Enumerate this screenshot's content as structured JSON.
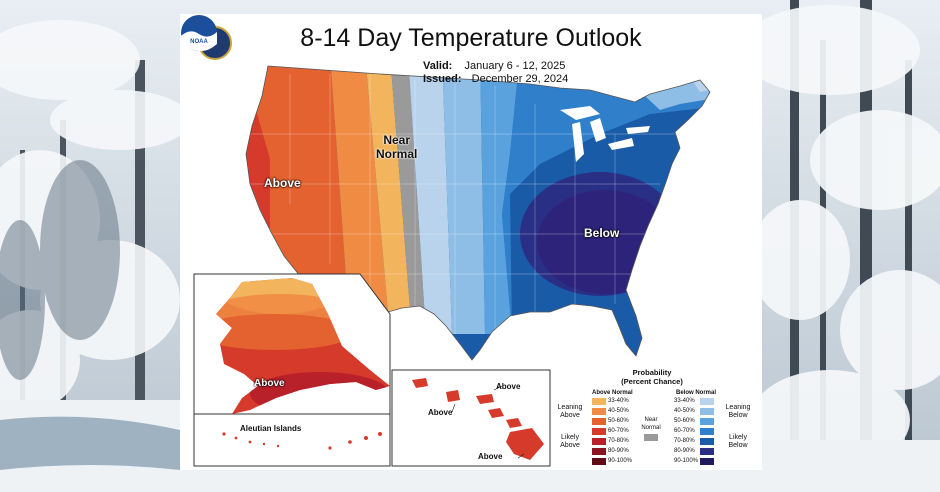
{
  "header": {
    "title": "8-14 Day Temperature Outlook",
    "valid_label": "Valid:",
    "valid_value": "January 6 - 12, 2025",
    "issued_label": "Issued:",
    "issued_value": "December 29, 2024"
  },
  "logos": {
    "seal_icon": "department-of-commerce-seal",
    "noaa_logo_text": "NOAA"
  },
  "map_labels": {
    "above": "Above",
    "near_normal_line1": "Near",
    "near_normal_line2": "Normal",
    "below": "Below",
    "alaska_above": "Above",
    "aleutian": "Aleutian Islands",
    "hawaii_above_1": "Above",
    "hawaii_above_2": "Above",
    "hawaii_above_3": "Above"
  },
  "legend": {
    "title_line1": "Probability",
    "title_line2": "(Percent Chance)",
    "above_header": "Above Normal",
    "below_header": "Below Normal",
    "near_header_line1": "Near",
    "near_header_line2": "Normal",
    "leaning_above_line1": "Leaning",
    "leaning_above_line2": "Above",
    "likely_above_line1": "Likely",
    "likely_above_line2": "Above",
    "leaning_below_line1": "Leaning",
    "leaning_below_line2": "Below",
    "likely_below_line1": "Likely",
    "likely_below_line2": "Below",
    "ranges": [
      "33-40%",
      "40-50%",
      "50-60%",
      "60-70%",
      "70-80%",
      "80-90%",
      "90-100%"
    ],
    "above_colors": [
      "#f2b45c",
      "#ef8b43",
      "#e4622f",
      "#d63a2a",
      "#b8202a",
      "#8c1422",
      "#5e0c18"
    ],
    "below_colors": [
      "#b9d3ec",
      "#8ebde6",
      "#5aa2de",
      "#2f7fcb",
      "#1a5ba8",
      "#2a2f86",
      "#201a5e"
    ],
    "near_color": "#9a9a9a"
  }
}
